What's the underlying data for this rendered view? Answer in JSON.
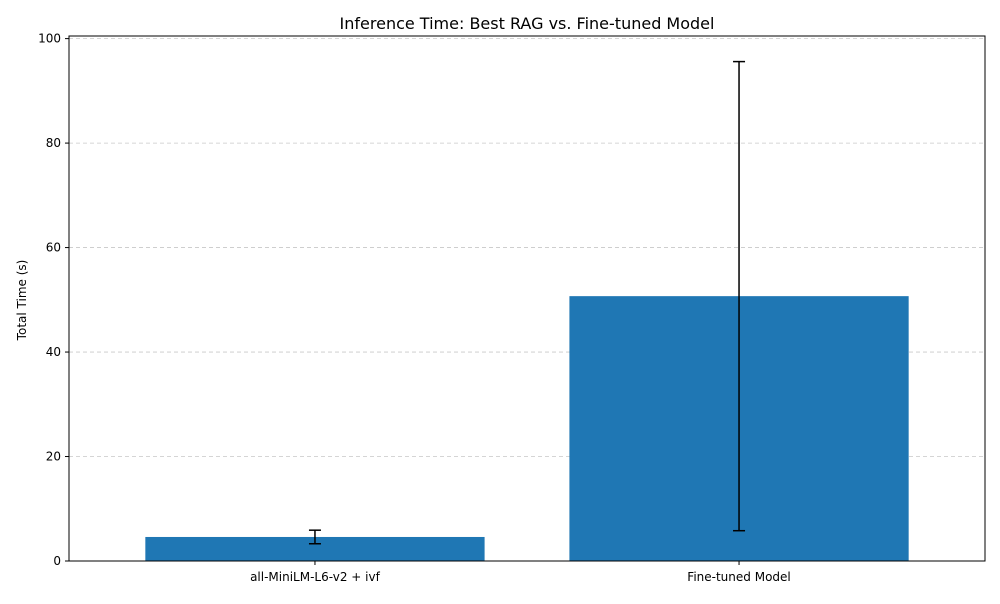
{
  "chart_data": {
    "type": "bar",
    "title": "Inference Time: Best RAG vs. Fine-tuned Model",
    "xlabel": "",
    "ylabel": "Total Time (s)",
    "categories": [
      "all-MiniLM-L6-v2 + ivf",
      "Fine-tuned Model"
    ],
    "values": [
      4.6,
      50.7
    ],
    "error_low": [
      3.3,
      5.8
    ],
    "error_high": [
      5.9,
      95.6
    ],
    "ylim": [
      0,
      100.5
    ],
    "yticks": [
      0,
      20,
      40,
      60,
      80,
      100
    ],
    "ytick_labels": [
      "0",
      "20",
      "40",
      "60",
      "80",
      "100"
    ],
    "grid": "horizontal dashed",
    "legend": "none",
    "colors": {
      "bar": "#1f77b4",
      "errorbar": "#000000",
      "grid": "#c8c8c8",
      "axis": "#000000"
    }
  }
}
